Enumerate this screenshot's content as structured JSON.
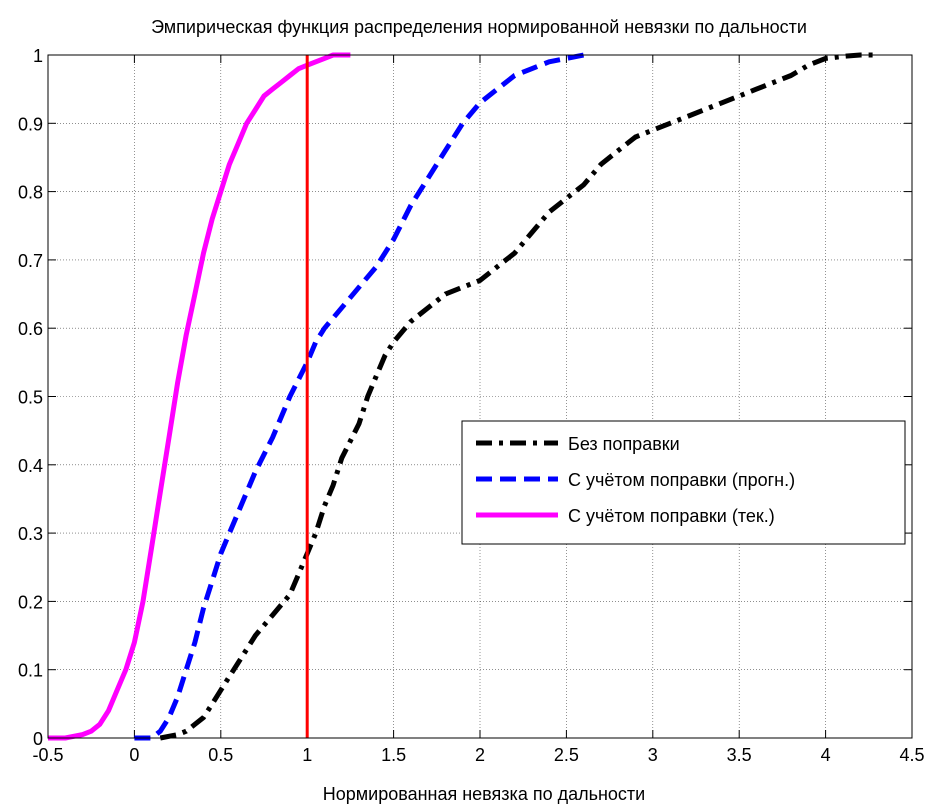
{
  "chart_data": {
    "type": "line",
    "title": "Эмпирическая функция распределения нормированной невязки по дальности",
    "xlabel": "Нормированная невязка по дальности",
    "ylabel": "",
    "xlim": [
      -0.5,
      4.5
    ],
    "ylim": [
      0,
      1
    ],
    "xticks": [
      -0.5,
      0,
      0.5,
      1,
      1.5,
      2,
      2.5,
      3,
      3.5,
      4,
      4.5
    ],
    "xtick_labels": [
      "-0.5",
      "0",
      "0.5",
      "1",
      "1.5",
      "2",
      "2.5",
      "3",
      "3.5",
      "4",
      "4.5"
    ],
    "yticks": [
      0,
      0.1,
      0.2,
      0.3,
      0.4,
      0.5,
      0.6,
      0.7,
      0.8,
      0.9,
      1
    ],
    "ytick_labels": [
      "0",
      "0.1",
      "0.2",
      "0.3",
      "0.4",
      "0.5",
      "0.6",
      "0.7",
      "0.8",
      "0.9",
      "1"
    ],
    "grid": true,
    "legend_position": "center-right",
    "series": [
      {
        "name": "Без поправки",
        "color": "#000000",
        "style": "dashdot",
        "x": [
          0.15,
          0.25,
          0.3,
          0.35,
          0.4,
          0.45,
          0.5,
          0.55,
          0.6,
          0.7,
          0.8,
          0.9,
          0.95,
          1.0,
          1.05,
          1.1,
          1.15,
          1.2,
          1.3,
          1.35,
          1.4,
          1.45,
          1.5,
          1.6,
          1.7,
          1.8,
          1.9,
          2.0,
          2.1,
          2.2,
          2.3,
          2.4,
          2.5,
          2.6,
          2.7,
          2.8,
          2.9,
          3.0,
          3.1,
          3.2,
          3.3,
          3.4,
          3.5,
          3.6,
          3.7,
          3.8,
          3.9,
          4.0,
          4.1,
          4.2,
          4.3
        ],
        "y": [
          0.0,
          0.005,
          0.01,
          0.02,
          0.03,
          0.05,
          0.07,
          0.09,
          0.11,
          0.15,
          0.18,
          0.21,
          0.24,
          0.27,
          0.3,
          0.34,
          0.37,
          0.41,
          0.46,
          0.5,
          0.53,
          0.56,
          0.58,
          0.61,
          0.63,
          0.65,
          0.66,
          0.67,
          0.69,
          0.71,
          0.74,
          0.77,
          0.79,
          0.81,
          0.84,
          0.86,
          0.88,
          0.89,
          0.9,
          0.91,
          0.92,
          0.93,
          0.94,
          0.95,
          0.96,
          0.97,
          0.985,
          0.995,
          0.998,
          1.0,
          1.0
        ]
      },
      {
        "name": "С учётом поправки (прогн.)",
        "color": "#0000ff",
        "style": "dashed",
        "x": [
          0.0,
          0.1,
          0.15,
          0.2,
          0.25,
          0.3,
          0.35,
          0.4,
          0.45,
          0.5,
          0.55,
          0.6,
          0.7,
          0.8,
          0.9,
          1.0,
          1.05,
          1.1,
          1.2,
          1.3,
          1.4,
          1.5,
          1.6,
          1.7,
          1.8,
          1.9,
          2.0,
          2.1,
          2.2,
          2.3,
          2.4,
          2.5,
          2.6
        ],
        "y": [
          0.0,
          0.0,
          0.01,
          0.03,
          0.06,
          0.1,
          0.14,
          0.19,
          0.23,
          0.27,
          0.3,
          0.33,
          0.39,
          0.44,
          0.5,
          0.55,
          0.58,
          0.6,
          0.63,
          0.66,
          0.69,
          0.73,
          0.78,
          0.82,
          0.86,
          0.9,
          0.93,
          0.95,
          0.97,
          0.98,
          0.99,
          0.995,
          1.0
        ]
      },
      {
        "name": "С учётом поправки (тек.)",
        "color": "#ff00ff",
        "style": "solid",
        "x": [
          -0.5,
          -0.4,
          -0.3,
          -0.25,
          -0.2,
          -0.15,
          -0.1,
          -0.05,
          0.0,
          0.05,
          0.1,
          0.15,
          0.2,
          0.25,
          0.3,
          0.35,
          0.4,
          0.45,
          0.5,
          0.55,
          0.6,
          0.65,
          0.7,
          0.75,
          0.8,
          0.85,
          0.9,
          0.95,
          1.0,
          1.05,
          1.1,
          1.15,
          1.25
        ],
        "y": [
          0.0,
          0.0,
          0.005,
          0.01,
          0.02,
          0.04,
          0.07,
          0.1,
          0.14,
          0.2,
          0.28,
          0.36,
          0.44,
          0.52,
          0.59,
          0.65,
          0.71,
          0.76,
          0.8,
          0.84,
          0.87,
          0.9,
          0.92,
          0.94,
          0.95,
          0.96,
          0.97,
          0.98,
          0.985,
          0.99,
          0.995,
          1.0,
          1.0
        ]
      }
    ],
    "reference_line": {
      "x": 1.0,
      "color": "#ff0000"
    }
  }
}
